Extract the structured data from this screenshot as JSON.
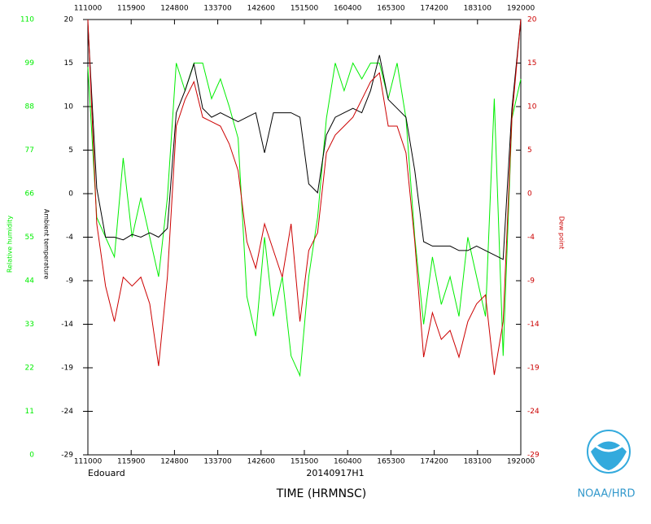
{
  "chart_data": {
    "type": "line",
    "title": "Edouard",
    "subtitle": "20140917H1",
    "xlabel": "TIME (HRMNSC)",
    "x": [
      670,
      680,
      690,
      700,
      710,
      720,
      730,
      740,
      750,
      760,
      770,
      780,
      790,
      800,
      810,
      820,
      830,
      840,
      850,
      860,
      870,
      880,
      890,
      900,
      910,
      920,
      930,
      940,
      950,
      960,
      970,
      980,
      990,
      1000,
      1010,
      1020,
      1030,
      1040,
      1050,
      1060,
      1070,
      1080,
      1090,
      1100,
      1110,
      1120,
      1130,
      1140,
      1150,
      1160
    ],
    "xlim": [
      670,
      1160
    ],
    "xticks": [
      {
        "value": 670,
        "label": "111000"
      },
      {
        "value": 719,
        "label": "115900"
      },
      {
        "value": 768,
        "label": "124800"
      },
      {
        "value": 817,
        "label": "133700"
      },
      {
        "value": 866,
        "label": "142600"
      },
      {
        "value": 915,
        "label": "151500"
      },
      {
        "value": 964,
        "label": "160400"
      },
      {
        "value": 1013,
        "label": "165300"
      },
      {
        "value": 1062,
        "label": "174200"
      },
      {
        "value": 1111,
        "label": "183100"
      },
      {
        "value": 1160,
        "label": "192000"
      }
    ],
    "ylim": [
      -29,
      20
    ],
    "yticks": [
      {
        "value": -29,
        "label": "-29"
      },
      {
        "value": -24.1,
        "label": "-24"
      },
      {
        "value": -19.2,
        "label": "-19"
      },
      {
        "value": -14.3,
        "label": "-14"
      },
      {
        "value": -9.4,
        "label": "-9"
      },
      {
        "value": -4.5,
        "label": "-4"
      },
      {
        "value": 0.4,
        "label": "0"
      },
      {
        "value": 5.3,
        "label": "5"
      },
      {
        "value": 10.2,
        "label": "10"
      },
      {
        "value": 15.1,
        "label": "15"
      },
      {
        "value": 20,
        "label": "20"
      }
    ],
    "y2lim": [
      -29,
      20
    ],
    "y2ticks": [
      {
        "value": -29,
        "label": "-29"
      },
      {
        "value": -24.1,
        "label": "-24"
      },
      {
        "value": -19.2,
        "label": "-19"
      },
      {
        "value": -14.3,
        "label": "-14"
      },
      {
        "value": -9.4,
        "label": "-9"
      },
      {
        "value": -4.5,
        "label": "-4"
      },
      {
        "value": 0.4,
        "label": "0"
      },
      {
        "value": 5.3,
        "label": "5"
      },
      {
        "value": 10.2,
        "label": "10"
      },
      {
        "value": 15.1,
        "label": "15"
      },
      {
        "value": 20,
        "label": "20"
      }
    ],
    "y3lim": [
      0,
      110
    ],
    "y3ticks": [
      0,
      11,
      22,
      33,
      44,
      55,
      66,
      77,
      88,
      99,
      110
    ],
    "series": [
      {
        "name": "Relative humidity",
        "color": "#00ee00",
        "axis": "y3",
        "values": [
          98,
          60,
          55,
          50,
          75,
          55,
          65,
          55,
          45,
          65,
          99,
          92,
          99,
          99,
          90,
          95,
          88,
          80,
          40,
          30,
          55,
          35,
          45,
          25,
          20,
          45,
          60,
          85,
          99,
          92,
          99,
          95,
          99,
          99,
          90,
          99,
          85,
          55,
          33,
          50,
          38,
          45,
          35,
          55,
          45,
          35,
          90,
          25,
          85,
          95
        ]
      },
      {
        "name": "Ambient temperature",
        "color": "#000000",
        "axis": "y",
        "values": [
          19.5,
          1,
          -4.5,
          -4.5,
          -4.8,
          -4.2,
          -4.5,
          -4,
          -4.5,
          -3.5,
          9.5,
          12,
          15,
          10,
          9,
          9.5,
          9,
          8.5,
          9,
          9.5,
          5,
          9.5,
          9.5,
          9.5,
          9,
          1.5,
          0.5,
          7,
          9,
          9.5,
          10,
          9.5,
          12,
          16,
          11,
          10,
          9,
          3,
          -5,
          -5.5,
          -5.5,
          -5.5,
          -6,
          -6,
          -5.5,
          -6,
          -6.5,
          -7,
          10,
          20
        ]
      },
      {
        "name": "Dew point",
        "color": "#cc0000",
        "axis": "y2",
        "values": [
          20,
          -3,
          -10,
          -14,
          -9,
          -10,
          -9,
          -12,
          -19,
          -9,
          8,
          11,
          13,
          9,
          8.5,
          8,
          6,
          3,
          -5,
          -8,
          -3,
          -6,
          -9,
          -3,
          -14,
          -6,
          -4,
          5,
          7,
          8,
          9,
          11,
          13,
          14,
          8,
          8,
          5,
          -5,
          -18,
          -13,
          -16,
          -15,
          -18,
          -14,
          -12,
          -11,
          -20,
          -14,
          9,
          20
        ]
      }
    ]
  },
  "footer": {
    "agency": "NOAA/HRD"
  }
}
